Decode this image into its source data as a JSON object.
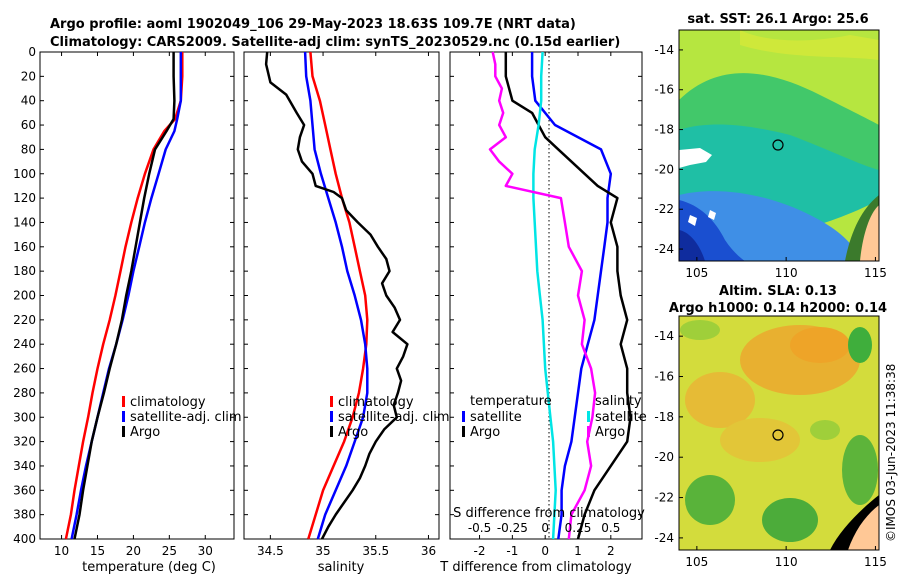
{
  "title": {
    "line1": "Argo profile: aoml 1902049_106 29-May-2023 18.63S 109.7E (NRT data)",
    "line2": "Climatology: CARS2009. Satellite-adj clim: synTS_20230529.nc (0.15d earlier)"
  },
  "colors": {
    "climatology": "#ff0000",
    "satellite": "#0000ff",
    "argo": "#000000",
    "t_diff": "#00e5e5",
    "s_diff": "#ff00ff"
  },
  "depth_ticks": [
    "0",
    "20",
    "40",
    "60",
    "80",
    "100",
    "120",
    "140",
    "160",
    "180",
    "200",
    "220",
    "240",
    "260",
    "280",
    "300",
    "320",
    "340",
    "360",
    "380",
    "400"
  ],
  "temp_panel": {
    "xlabel": "temperature (deg C)",
    "xticks": [
      "10",
      "15",
      "20",
      "25",
      "30"
    ],
    "legend": [
      "climatology",
      "satellite-adj. clim",
      "Argo"
    ]
  },
  "sal_panel": {
    "xlabel": "salinity",
    "xticks": [
      "34.5",
      "35",
      "35.5",
      "36"
    ],
    "legend": [
      "climatology",
      "satellite-adj. clim",
      "Argo"
    ]
  },
  "diff_panel": {
    "xlabel": "T difference from climatology",
    "xticks": [
      "-2",
      "-1",
      "0",
      "1",
      "2"
    ],
    "s_axis_label": "S difference from climatology",
    "s_ticks": [
      "-0.5",
      "-0.25",
      "0",
      "0.25",
      "0.5"
    ],
    "legend_temp_title": "temperature",
    "legend_sal_title": "salinity",
    "legend_items": [
      "satellite",
      "Argo"
    ]
  },
  "sst_map": {
    "title": "sat. SST: 26.1 Argo: 25.6",
    "xticks": [
      "105",
      "110",
      "115"
    ],
    "yticks": [
      "-14",
      "-16",
      "-18",
      "-20",
      "-22",
      "-24"
    ]
  },
  "sla_map": {
    "title1": "Altim. SLA: 0.13",
    "title2": "Argo h1000: 0.14 h2000: 0.14",
    "xticks": [
      "105",
      "110",
      "115"
    ],
    "yticks": [
      "-14",
      "-16",
      "-18",
      "-20",
      "-22",
      "-24"
    ]
  },
  "credit": "©IMOS 03-Jun-2023 11:38:38",
  "chart_data": [
    {
      "type": "line",
      "title": "",
      "xlabel": "temperature (deg C)",
      "ylabel": "depth",
      "xlim": [
        7,
        34
      ],
      "ylim": [
        400,
        0
      ],
      "series": [
        {
          "name": "climatology",
          "depth": [
            0,
            20,
            40,
            55,
            65,
            80,
            100,
            120,
            140,
            160,
            180,
            200,
            220,
            240,
            260,
            280,
            300,
            320,
            340,
            360,
            380,
            400
          ],
          "values": [
            26.8,
            26.8,
            26.6,
            25.8,
            24.3,
            22.8,
            21.6,
            20.6,
            19.7,
            18.9,
            18.2,
            17.5,
            16.7,
            15.8,
            15.0,
            14.3,
            13.7,
            13.0,
            12.4,
            11.8,
            11.3,
            10.6
          ]
        },
        {
          "name": "satellite-adj. clim",
          "depth": [
            0,
            20,
            40,
            55,
            65,
            80,
            100,
            120,
            140,
            160,
            180,
            200,
            220,
            240,
            260,
            280,
            300,
            320,
            340,
            360,
            380,
            400
          ],
          "values": [
            26.6,
            26.6,
            26.6,
            26.1,
            25.7,
            24.5,
            23.5,
            22.5,
            21.6,
            20.8,
            20.0,
            19.3,
            18.5,
            17.6,
            16.6,
            15.8,
            15.0,
            14.2,
            13.4,
            12.7,
            12.1,
            11.4
          ]
        },
        {
          "name": "Argo",
          "depth": [
            0,
            20,
            40,
            55,
            65,
            80,
            100,
            120,
            140,
            160,
            180,
            200,
            220,
            240,
            260,
            280,
            300,
            320,
            340,
            360,
            380,
            400
          ],
          "values": [
            25.6,
            25.6,
            25.7,
            25.6,
            24.6,
            23.0,
            22.2,
            21.5,
            20.9,
            20.3,
            19.7,
            19.0,
            18.4,
            17.6,
            16.7,
            15.9,
            15.0,
            14.2,
            13.6,
            13.0,
            12.5,
            11.8
          ]
        }
      ]
    },
    {
      "type": "line",
      "title": "",
      "xlabel": "salinity",
      "ylabel": "depth",
      "xlim": [
        34.25,
        36.1
      ],
      "ylim": [
        400,
        0
      ],
      "series": [
        {
          "name": "climatology",
          "depth": [
            0,
            20,
            40,
            60,
            80,
            100,
            120,
            140,
            160,
            180,
            200,
            220,
            240,
            260,
            280,
            300,
            320,
            340,
            360,
            380,
            400
          ],
          "values": [
            34.88,
            34.9,
            34.97,
            35.02,
            35.07,
            35.12,
            35.18,
            35.25,
            35.3,
            35.35,
            35.4,
            35.42,
            35.41,
            35.38,
            35.34,
            35.28,
            35.2,
            35.1,
            35.0,
            34.93,
            34.86
          ]
        },
        {
          "name": "satellite-adj. clim",
          "depth": [
            0,
            20,
            40,
            60,
            80,
            100,
            120,
            140,
            160,
            180,
            200,
            220,
            240,
            260,
            280,
            300,
            320,
            340,
            360,
            380,
            400
          ],
          "values": [
            34.83,
            34.84,
            34.88,
            34.9,
            34.92,
            34.98,
            35.05,
            35.12,
            35.18,
            35.23,
            35.3,
            35.36,
            35.4,
            35.42,
            35.42,
            35.38,
            35.3,
            35.22,
            35.12,
            35.02,
            34.95
          ]
        },
        {
          "name": "Argo",
          "depth": [
            0,
            10,
            25,
            35,
            50,
            60,
            70,
            80,
            90,
            100,
            110,
            115,
            120,
            130,
            140,
            150,
            160,
            170,
            180,
            190,
            200,
            210,
            220,
            230,
            240,
            250,
            260,
            270,
            280,
            290,
            300,
            310,
            320,
            330,
            340,
            350,
            360,
            370,
            380,
            390,
            400
          ],
          "values": [
            34.47,
            34.46,
            34.5,
            34.65,
            34.75,
            34.82,
            34.78,
            34.76,
            34.8,
            34.9,
            34.93,
            35.1,
            35.18,
            35.22,
            35.33,
            35.45,
            35.52,
            35.6,
            35.63,
            35.56,
            35.6,
            35.68,
            35.73,
            35.66,
            35.8,
            35.76,
            35.7,
            35.74,
            35.71,
            35.67,
            35.7,
            35.58,
            35.5,
            35.44,
            35.4,
            35.35,
            35.28,
            35.2,
            35.12,
            35.05,
            34.99
          ]
        }
      ]
    },
    {
      "type": "line",
      "title": "",
      "xlabel": "T difference from climatology",
      "ylabel": "depth",
      "xlim": [
        -2.9,
        2.95
      ],
      "ylim": [
        400,
        0
      ],
      "secondary_xlabel": "S difference from climatology",
      "secondary_xlim": [
        -0.725,
        0.7375
      ],
      "series": [
        {
          "name": "T satellite",
          "axis": "T",
          "depth": [
            0,
            20,
            40,
            60,
            80,
            100,
            120,
            140,
            160,
            180,
            200,
            220,
            240,
            260,
            280,
            300,
            320,
            340,
            360,
            380,
            400
          ],
          "values": [
            -0.4,
            -0.4,
            -0.3,
            0.3,
            1.7,
            2.0,
            1.9,
            1.9,
            1.8,
            1.7,
            1.6,
            1.5,
            1.3,
            1.1,
            1.0,
            0.9,
            0.8,
            0.6,
            0.5,
            0.5,
            0.4
          ]
        },
        {
          "name": "T Argo",
          "axis": "T",
          "depth": [
            0,
            20,
            40,
            50,
            60,
            70,
            80,
            90,
            100,
            110,
            120,
            140,
            160,
            180,
            200,
            220,
            240,
            260,
            280,
            300,
            320,
            340,
            360,
            380,
            400
          ],
          "values": [
            -1.2,
            -1.2,
            -1.0,
            -0.4,
            -0.2,
            0.0,
            0.4,
            0.8,
            1.2,
            1.6,
            2.2,
            2.0,
            2.2,
            2.2,
            2.3,
            2.5,
            2.3,
            2.5,
            2.5,
            2.6,
            2.5,
            2.0,
            1.5,
            1.2,
            1.0
          ]
        },
        {
          "name": "S satellite",
          "axis": "S",
          "depth": [
            0,
            20,
            40,
            60,
            80,
            100,
            120,
            140,
            160,
            180,
            200,
            220,
            240,
            260,
            280,
            300,
            320,
            340,
            360,
            380,
            400
          ],
          "values": [
            -0.02,
            -0.03,
            -0.03,
            -0.05,
            -0.08,
            -0.09,
            -0.09,
            -0.08,
            -0.07,
            -0.06,
            -0.04,
            -0.02,
            -0.01,
            0.0,
            0.02,
            0.04,
            0.06,
            0.07,
            0.08,
            0.07,
            0.06
          ]
        },
        {
          "name": "S Argo",
          "axis": "S",
          "depth": [
            0,
            10,
            20,
            30,
            40,
            50,
            60,
            70,
            80,
            90,
            100,
            110,
            120,
            140,
            160,
            180,
            200,
            220,
            240,
            260,
            280,
            300,
            320,
            340,
            360,
            380,
            400
          ],
          "values": [
            -0.4,
            -0.38,
            -0.38,
            -0.33,
            -0.35,
            -0.32,
            -0.35,
            -0.3,
            -0.42,
            -0.35,
            -0.25,
            -0.3,
            0.12,
            0.15,
            0.18,
            0.28,
            0.25,
            0.3,
            0.28,
            0.35,
            0.38,
            0.36,
            0.32,
            0.35,
            0.3,
            0.2,
            0.18
          ]
        }
      ]
    }
  ]
}
